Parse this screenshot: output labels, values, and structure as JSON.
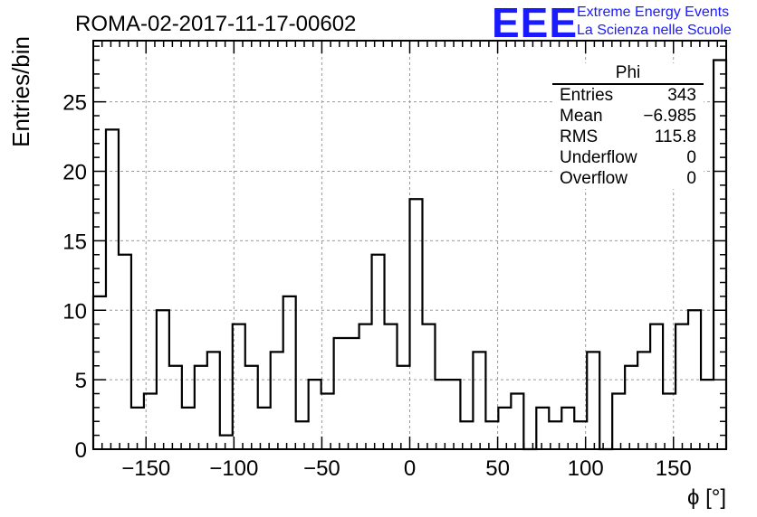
{
  "chart_data": {
    "type": "histogram",
    "title": "ROMA-02-2017-11-17-00602",
    "xlabel": "ϕ [°]",
    "ylabel": "Entries/bin",
    "xlim": [
      -180,
      180
    ],
    "ylim": [
      0,
      29.4
    ],
    "grid": true,
    "bin_width": 7.2,
    "x_ticks": [
      -150,
      -100,
      -50,
      0,
      50,
      100,
      150
    ],
    "x_tick_labels": [
      "−150",
      "−100",
      "−50",
      "0",
      "50",
      "100",
      "150"
    ],
    "y_ticks": [
      0,
      5,
      10,
      15,
      20,
      25
    ],
    "y_tick_labels": [
      "0",
      "5",
      "10",
      "15",
      "20",
      "25"
    ],
    "bin_edges_start": -180,
    "values": [
      11,
      23,
      14,
      3,
      4,
      10,
      6,
      3,
      6,
      7,
      1,
      9,
      6,
      3,
      7,
      11,
      2,
      5,
      4,
      8,
      8,
      9,
      14,
      9,
      6,
      18,
      9,
      5,
      5,
      2,
      7,
      2,
      3,
      4,
      0,
      3,
      2,
      3,
      2,
      7,
      0,
      4,
      6,
      7,
      9,
      4,
      9,
      10,
      5,
      28
    ]
  },
  "stats": {
    "title": "Phi",
    "rows": [
      {
        "label": "Entries",
        "value": "343"
      },
      {
        "label": "Mean",
        "value": "−6.985"
      },
      {
        "label": "RMS",
        "value": "115.8"
      },
      {
        "label": "Underflow",
        "value": "0"
      },
      {
        "label": "Overflow",
        "value": "0"
      }
    ]
  },
  "logo": {
    "mark": "EEE",
    "line1": "Extreme Energy Events",
    "line2": "La Scienza nelle Scuole"
  },
  "colors": {
    "line": "#000000",
    "grid": "#9a9a9a",
    "logo": "#1a1aff"
  }
}
